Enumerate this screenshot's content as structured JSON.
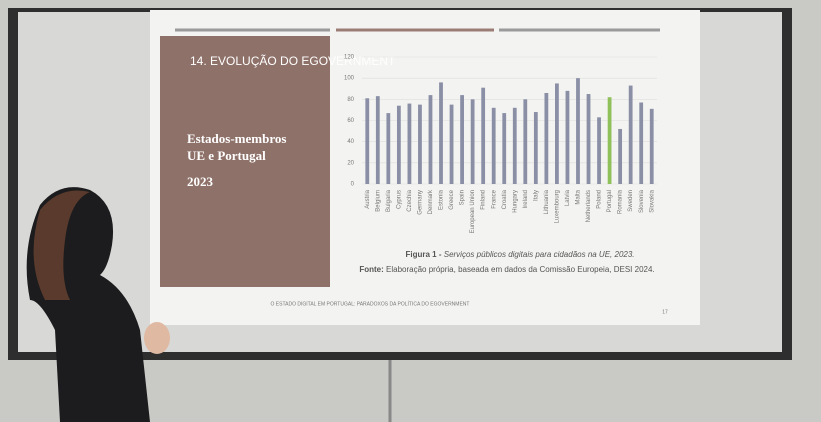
{
  "slide": {
    "title": "14. EVOLUÇÃO DO EGOVERNMENT",
    "subtitle_line1": "Estados-membros",
    "subtitle_line2": "UE e Portugal",
    "year": "2023",
    "caption_label": "Figura 1 -",
    "caption_text": "Serviços públicos digitais para cidadãos na UE, 2023.",
    "source_label": "Fonte:",
    "source_text": "Elaboração própria, baseada em dados da Comissão Europeia, DESI 2024.",
    "footer": "O ESTADO DIGITAL EM PORTUGAL: PARADOXOS DA POLÍTICA DO EGOVERNMENT",
    "page_number": "17"
  },
  "chart_data": {
    "type": "bar",
    "categories": [
      "Austria",
      "Belgium",
      "Bulgaria",
      "Cyprus",
      "Czechia",
      "Germany",
      "Denmark",
      "Estonia",
      "Greece",
      "Spain",
      "European Union",
      "Finland",
      "France",
      "Croatia",
      "Hungary",
      "Ireland",
      "Italy",
      "Lithuania",
      "Luxembourg",
      "Latvia",
      "Malta",
      "Netherlands",
      "Poland",
      "Portugal",
      "Romania",
      "Sweden",
      "Slovenia",
      "Slovakia"
    ],
    "values": [
      81,
      83,
      67,
      74,
      76,
      75,
      84,
      96,
      75,
      84,
      80,
      91,
      72,
      67,
      72,
      80,
      68,
      86,
      95,
      88,
      100,
      85,
      63,
      82,
      52,
      93,
      77,
      71
    ],
    "colors": [
      "#8a8fa6",
      "#8a8fa6",
      "#8a8fa6",
      "#8a8fa6",
      "#8a8fa6",
      "#8a8fa6",
      "#8a8fa6",
      "#8a8fa6",
      "#8a8fa6",
      "#8a8fa6",
      "#8a8fa6",
      "#8a8fa6",
      "#8a8fa6",
      "#8a8fa6",
      "#8a8fa6",
      "#8a8fa6",
      "#8a8fa6",
      "#8a8fa6",
      "#8a8fa6",
      "#8a8fa6",
      "#8a8fa6",
      "#8a8fa6",
      "#8a8fa6",
      "#8fc05a",
      "#8a8fa6",
      "#8a8fa6",
      "#8a8fa6",
      "#8a8fa6"
    ],
    "ylim": [
      0,
      120
    ],
    "yticks": [
      0,
      20,
      40,
      60,
      80,
      100,
      120
    ],
    "grid": true
  }
}
